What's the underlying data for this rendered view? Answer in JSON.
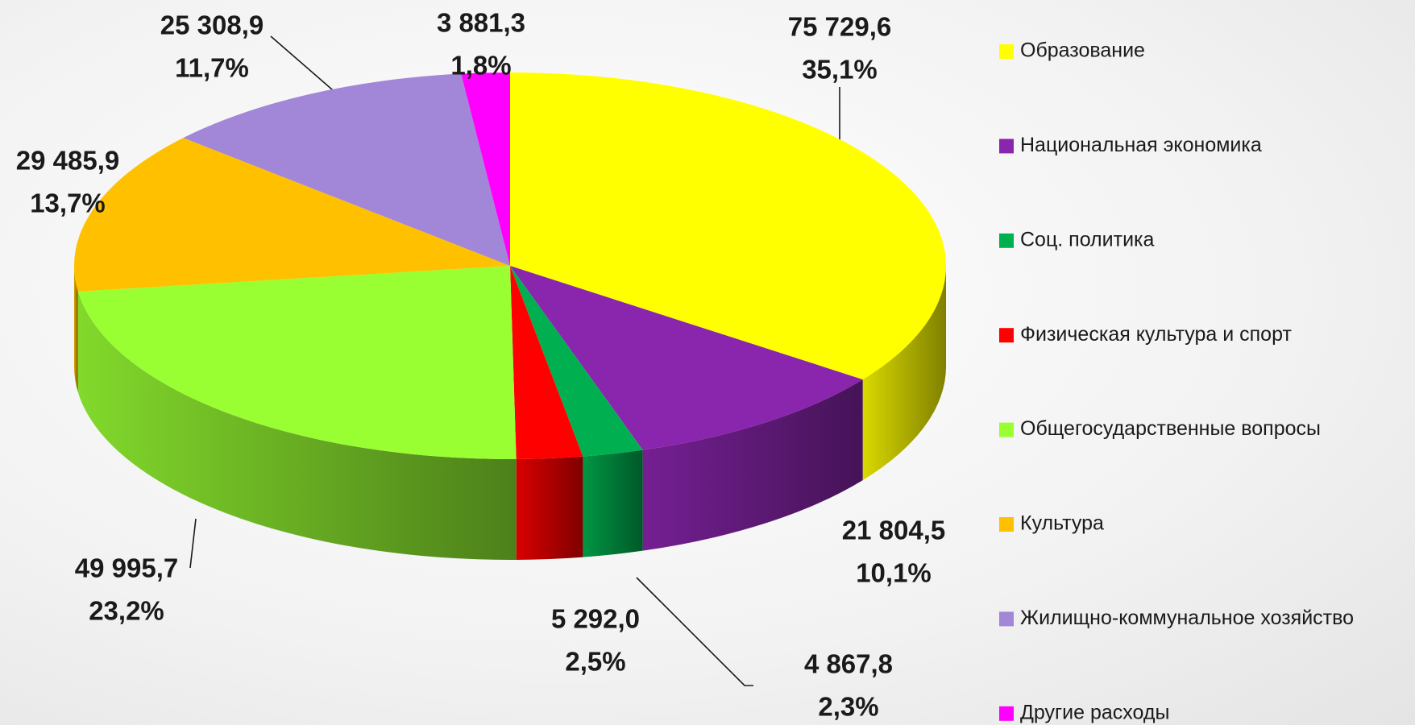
{
  "chart_data": {
    "type": "pie3d",
    "categories": [
      "Образование",
      "Национальная экономика",
      "Соц. политика",
      "Физическая культура и спорт",
      "Общегосударственные вопросы",
      "Культура",
      "Жилищно-коммунальное хозяйство",
      "Другие расходы"
    ],
    "values": [
      75729.6,
      21804.5,
      4867.8,
      5292.0,
      49995.7,
      29485.9,
      25308.9,
      3881.3
    ],
    "value_labels": [
      "75 729,6",
      "21 804,5",
      "4 867,8",
      "5 292,0",
      "49 995,7",
      "29 485,9",
      "25 308,9",
      "3 881,3"
    ],
    "percent_labels": [
      "35,1%",
      "10,1%",
      "2,3%",
      "2,5%",
      "23,2%",
      "13,7%",
      "11,7%",
      "1,8%"
    ],
    "colors": [
      "#ffff00",
      "#8a25ad",
      "#00b050",
      "#ff0000",
      "#99ff33",
      "#ffc000",
      "#a287d8",
      "#ff00ff"
    ],
    "legend": "right"
  }
}
